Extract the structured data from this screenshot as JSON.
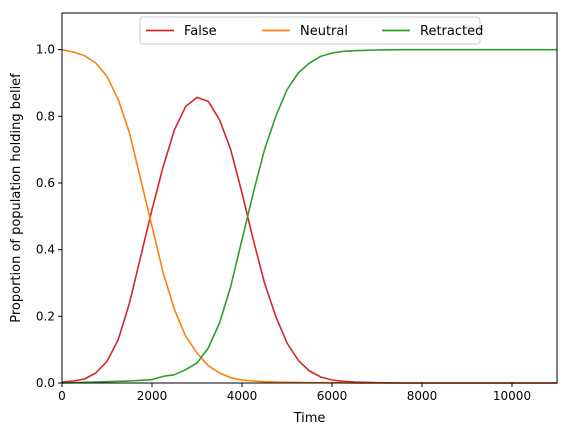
{
  "chart_data": {
    "type": "line",
    "title": "",
    "xlabel": "Time",
    "ylabel": "Proportion of population holding belief",
    "xlim": [
      0,
      11000
    ],
    "ylim": [
      0.0,
      1.11
    ],
    "x_ticks": [
      0,
      2000,
      4000,
      6000,
      8000,
      10000
    ],
    "y_ticks": [
      0.0,
      0.2,
      0.4,
      0.6,
      0.8,
      1.0
    ],
    "x_tick_labels": [
      "0",
      "2000",
      "4000",
      "6000",
      "8000",
      "10000"
    ],
    "y_tick_labels": [
      "0.0",
      "0.2",
      "0.4",
      "0.6",
      "0.8",
      "1.0"
    ],
    "grid": false,
    "legend_position": "top-center",
    "x": [
      0,
      250,
      500,
      750,
      1000,
      1250,
      1500,
      1750,
      2000,
      2250,
      2500,
      2750,
      3000,
      3250,
      3500,
      3750,
      4000,
      4250,
      4500,
      4750,
      5000,
      5250,
      5500,
      5750,
      6000,
      6250,
      6500,
      7000,
      7500,
      8000,
      9000,
      10000,
      11000
    ],
    "series": [
      {
        "name": "False",
        "color": "#d62728",
        "values": [
          0.003,
          0.006,
          0.012,
          0.03,
          0.065,
          0.13,
          0.24,
          0.38,
          0.52,
          0.65,
          0.76,
          0.83,
          0.857,
          0.845,
          0.79,
          0.7,
          0.57,
          0.43,
          0.3,
          0.2,
          0.12,
          0.068,
          0.036,
          0.018,
          0.009,
          0.005,
          0.003,
          0.001,
          0.0,
          0.0,
          0.0,
          0.0,
          0.0
        ]
      },
      {
        "name": "Neutral",
        "color": "#ff7f0e",
        "values": [
          1.0,
          0.993,
          0.982,
          0.96,
          0.92,
          0.85,
          0.75,
          0.61,
          0.47,
          0.33,
          0.22,
          0.14,
          0.09,
          0.052,
          0.03,
          0.016,
          0.009,
          0.006,
          0.004,
          0.003,
          0.002,
          0.002,
          0.001,
          0.001,
          0.001,
          0.001,
          0.0,
          0.0,
          0.0,
          0.0,
          0.0,
          0.0,
          0.0
        ]
      },
      {
        "name": "Retracted",
        "color": "#2ca02c",
        "values": [
          0.0,
          0.001,
          0.002,
          0.003,
          0.004,
          0.005,
          0.006,
          0.008,
          0.01,
          0.02,
          0.025,
          0.04,
          0.06,
          0.105,
          0.18,
          0.29,
          0.43,
          0.57,
          0.7,
          0.8,
          0.88,
          0.93,
          0.96,
          0.98,
          0.99,
          0.995,
          0.997,
          0.999,
          1.0,
          1.0,
          1.0,
          1.0,
          1.0
        ]
      }
    ]
  }
}
